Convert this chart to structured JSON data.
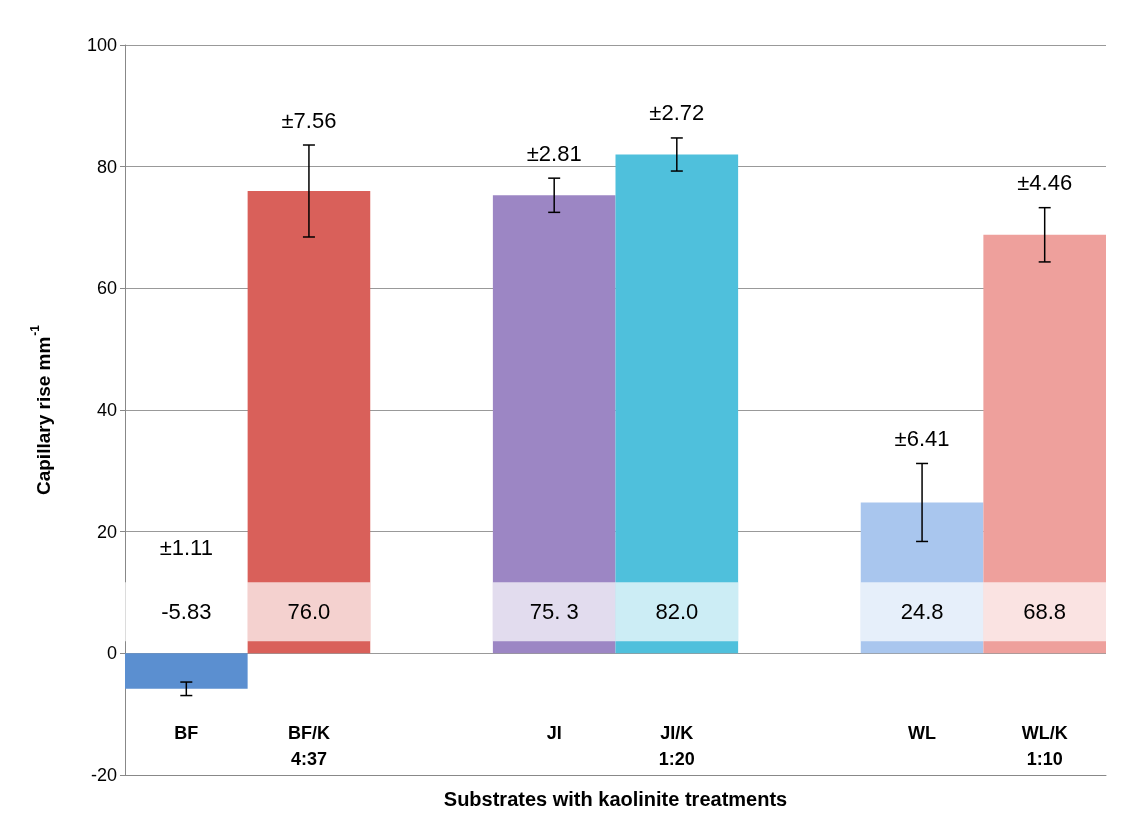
{
  "chart_data": {
    "type": "bar",
    "xlabel": "Substrates with kaolinite treatments",
    "ylabel": "Capillary rise mm$^{-1}$",
    "categories": [
      "BF",
      "BF/K\n4:37",
      null,
      "JI",
      "JI/K\n1:20",
      null,
      "WL",
      "WL/K\n1:10"
    ],
    "values": [
      -5.83,
      76.0,
      null,
      75.3,
      82.0,
      null,
      24.8,
      68.8
    ],
    "colors": [
      "#5b8fd0",
      "#d9605a",
      "#ffffff",
      "#9c86c4",
      "#4fc0dc",
      "#ffffff",
      "#a9c6ee",
      "#eea09c"
    ],
    "errors": [
      1.11,
      7.56,
      null,
      2.81,
      2.72,
      null,
      6.41,
      4.46
    ],
    "value_labels": [
      "-5.83",
      "76.0",
      null,
      "75. 3",
      "82.0",
      null,
      "24.8",
      "68.8"
    ],
    "annotations": [
      "±1.11",
      {
        "text": "±7.56",
        "x": "BF/K\n4:37",
        "y": 83.56
      },
      {
        "text": "±2.81",
        "x": "JI",
        "y": 78.11
      },
      {
        "text": "±2.72",
        "x": "JI/K\n1:20",
        "y": 84.72
      },
      {
        "text": "±6.41",
        "x": "WL",
        "y": 31.21
      },
      {
        "text": "±4.46",
        "x": "WL/K\n1:10",
        "y": 73.26
      }
    ],
    "ylim": [
      -20,
      100
    ],
    "yticks": [
      -20,
      0,
      20,
      40,
      60,
      80,
      100
    ],
    "grid": "y"
  }
}
